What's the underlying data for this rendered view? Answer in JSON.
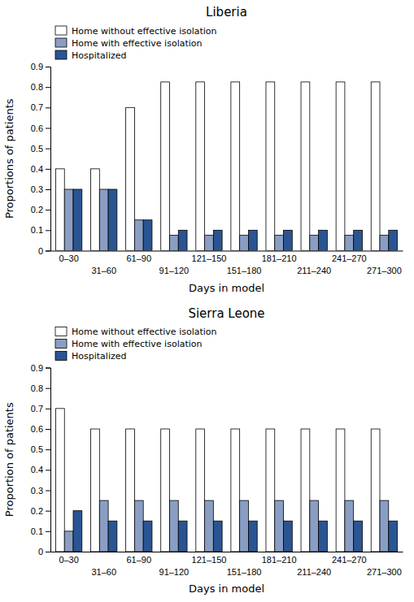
{
  "chart_data": [
    {
      "type": "bar",
      "title": "Liberia",
      "xlabel": "Days in model",
      "ylabel": "Proportions of patients",
      "categories": [
        "0–30",
        "31–60",
        "61–90",
        "91–120",
        "121–150",
        "151–180",
        "181–210",
        "211–240",
        "241–270",
        "271–300"
      ],
      "series": [
        {
          "name": "Home without effective isolation",
          "color": "#FFFFFF",
          "values": [
            0.4,
            0.4,
            0.7,
            0.825,
            0.825,
            0.825,
            0.825,
            0.825,
            0.825,
            0.825
          ]
        },
        {
          "name": "Home with effective isolation",
          "color": "#8A9EC4",
          "values": [
            0.3,
            0.3,
            0.15,
            0.075,
            0.075,
            0.075,
            0.075,
            0.075,
            0.075,
            0.075
          ]
        },
        {
          "name": "Hospitalized",
          "color": "#2A5592",
          "values": [
            0.3,
            0.3,
            0.15,
            0.1,
            0.1,
            0.1,
            0.1,
            0.1,
            0.1,
            0.1
          ]
        }
      ],
      "ylim": [
        0,
        0.9
      ],
      "yticks": [
        0,
        0.1,
        0.2,
        0.3,
        0.4,
        0.5,
        0.6,
        0.7,
        0.8,
        0.9
      ],
      "legend": "top"
    },
    {
      "type": "bar",
      "title": "Sierra Leone",
      "xlabel": "Days in model",
      "ylabel": "Proportion of patients",
      "categories": [
        "0–30",
        "31–60",
        "61–90",
        "91–120",
        "121–150",
        "151–180",
        "181–210",
        "211–240",
        "241–270",
        "271–300"
      ],
      "series": [
        {
          "name": "Home without effective isolation",
          "color": "#FFFFFF",
          "values": [
            0.7,
            0.6,
            0.6,
            0.6,
            0.6,
            0.6,
            0.6,
            0.6,
            0.6,
            0.6
          ]
        },
        {
          "name": "Home with effective isolation",
          "color": "#8A9EC4",
          "values": [
            0.1,
            0.25,
            0.25,
            0.25,
            0.25,
            0.25,
            0.25,
            0.25,
            0.25,
            0.25
          ]
        },
        {
          "name": "Hospitalized",
          "color": "#2A5592",
          "values": [
            0.2,
            0.15,
            0.15,
            0.15,
            0.15,
            0.15,
            0.15,
            0.15,
            0.15,
            0.15
          ]
        }
      ],
      "ylim": [
        0,
        0.9
      ],
      "yticks": [
        0,
        0.1,
        0.2,
        0.3,
        0.4,
        0.5,
        0.6,
        0.7,
        0.8,
        0.9
      ],
      "legend": "top"
    }
  ]
}
